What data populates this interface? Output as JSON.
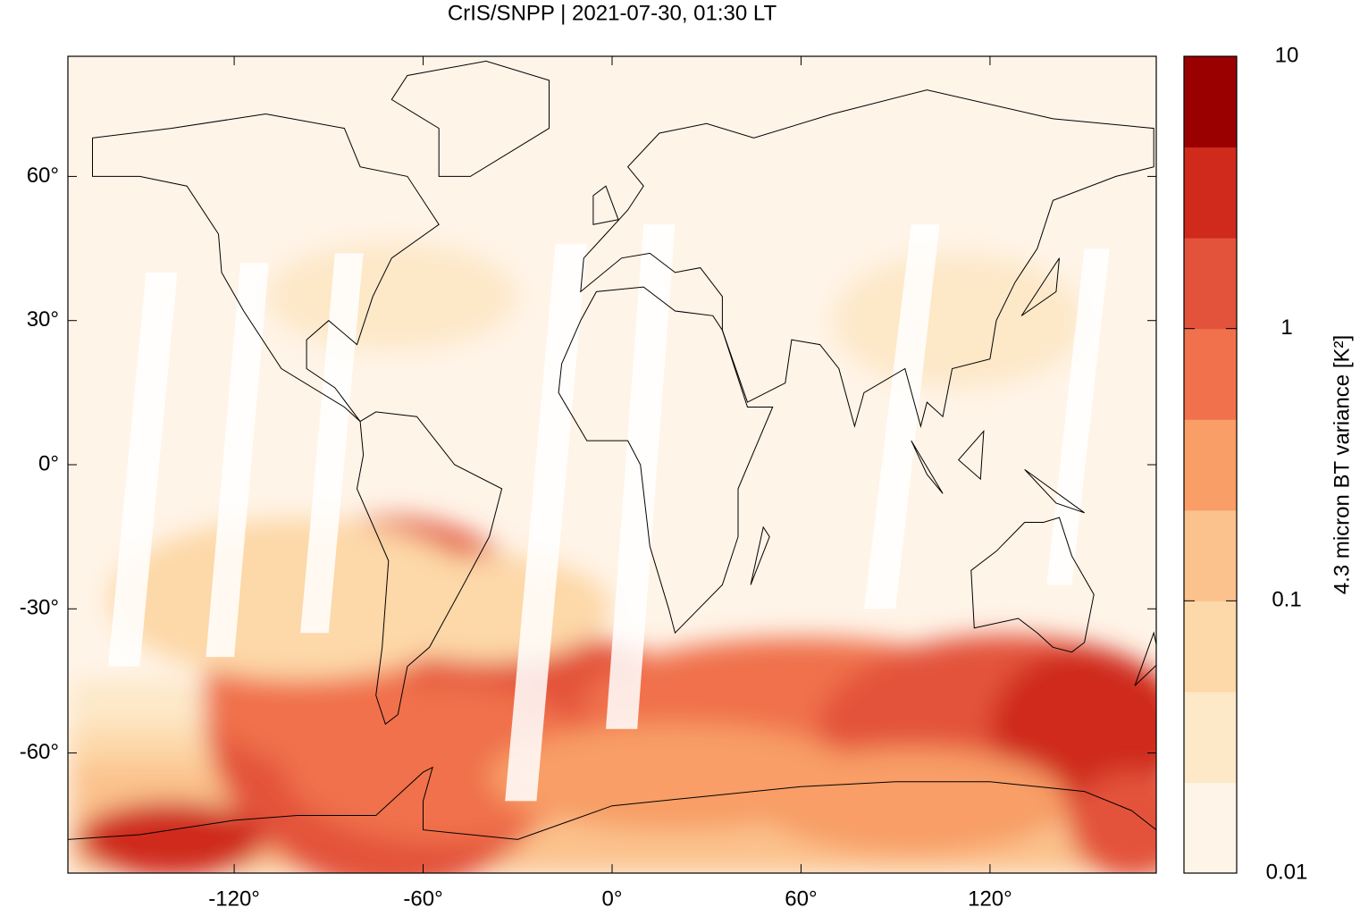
{
  "chart_data": {
    "type": "map",
    "title": "CrIS/SNPP | 2021-07-30, 01:30 LT",
    "xlim": [
      -172.8,
      172.8
    ],
    "ylim": [
      -85,
      85
    ],
    "xticks": [
      {
        "value": -120,
        "label": "-120°"
      },
      {
        "value": -60,
        "label": "-60°"
      },
      {
        "value": 0,
        "label": "0°"
      },
      {
        "value": 60,
        "label": "60°"
      },
      {
        "value": 120,
        "label": "120°"
      }
    ],
    "yticks": [
      {
        "value": -60,
        "label": "-60°"
      },
      {
        "value": -30,
        "label": "-30°"
      },
      {
        "value": 0,
        "label": "0°"
      },
      {
        "value": 30,
        "label": "30°"
      },
      {
        "value": 60,
        "label": "60°"
      }
    ],
    "colorbar": {
      "label": "4.3 micron BT variance [K²]",
      "lim": [
        0.01,
        10
      ],
      "ticks": [
        0.01,
        0.1,
        1,
        10
      ],
      "scale": "log",
      "colors": [
        "#fff4e8",
        "#fde8c8",
        "#fdd8a8",
        "#fbc28d",
        "#f89e66",
        "#f0714b",
        "#e3533b",
        "#cf2a1c",
        "#9a0000"
      ]
    }
  }
}
